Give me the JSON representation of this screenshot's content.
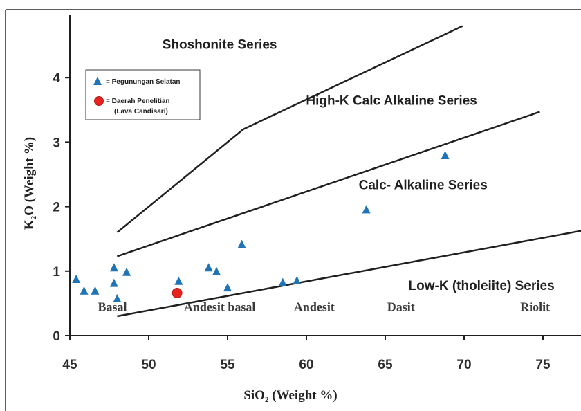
{
  "chart_data": {
    "type": "scatter",
    "title": "",
    "xlabel": "SiO",
    "xlabel_sub": "2",
    "xlabel_suffix": " (Weight %)",
    "ylabel": "K",
    "ylabel_sub": "2",
    "ylabel_suffix": "O (Weight %)",
    "xlim": [
      45,
      78
    ],
    "ylim": [
      0,
      4.9
    ],
    "xticks": [
      45,
      50,
      55,
      60,
      65,
      70,
      75
    ],
    "yticks": [
      0,
      1,
      2,
      3,
      4
    ],
    "grid": false,
    "legend_placement": "top-left",
    "legend": [
      {
        "name": "= Pegunungan Selatan",
        "marker": "triangle",
        "color": "#1f73b7"
      },
      {
        "name": "= Daerah Penelitian",
        "subname": "(Lava Candisari)",
        "marker": "circle",
        "color": "#e8221c"
      }
    ],
    "series": [
      {
        "name": "= Pegunungan Selatan",
        "marker": "triangle",
        "color": "#1f73b7",
        "points": [
          {
            "x": 45.4,
            "y": 0.88
          },
          {
            "x": 45.9,
            "y": 0.7
          },
          {
            "x": 46.6,
            "y": 0.7
          },
          {
            "x": 47.8,
            "y": 1.06
          },
          {
            "x": 47.8,
            "y": 0.82
          },
          {
            "x": 48.0,
            "y": 0.58
          },
          {
            "x": 48.6,
            "y": 0.99
          },
          {
            "x": 51.9,
            "y": 0.85
          },
          {
            "x": 53.8,
            "y": 1.06
          },
          {
            "x": 54.3,
            "y": 1.0
          },
          {
            "x": 55.0,
            "y": 0.75
          },
          {
            "x": 55.9,
            "y": 1.42
          },
          {
            "x": 58.5,
            "y": 0.83
          },
          {
            "x": 59.4,
            "y": 0.86
          },
          {
            "x": 63.8,
            "y": 1.96
          },
          {
            "x": 68.8,
            "y": 2.8
          }
        ]
      },
      {
        "name": "= Daerah Penelitian",
        "marker": "circle",
        "color": "#e8221c",
        "points": [
          {
            "x": 51.8,
            "y": 0.66
          }
        ]
      }
    ],
    "boundaries": [
      {
        "points": [
          [
            48.0,
            0.3
          ],
          [
            78.0,
            1.65
          ]
        ]
      },
      {
        "points": [
          [
            48.0,
            1.23
          ],
          [
            74.8,
            3.47
          ]
        ]
      },
      {
        "points": [
          [
            48.0,
            1.6
          ],
          [
            56.0,
            3.2
          ],
          [
            69.9,
            4.8
          ]
        ]
      }
    ],
    "region_labels": [
      {
        "text": "Shoshonite Series",
        "x": 54.5,
        "y": 4.45
      },
      {
        "text": "High-K Calc Alkaline Series",
        "x": 65.4,
        "y": 3.58
      },
      {
        "text": "Calc- Alkaline Series",
        "x": 67.4,
        "y": 2.27
      },
      {
        "text": "Low-K (tholeiite) Series",
        "x": 71.1,
        "y": 0.71
      }
    ],
    "rock_labels": [
      {
        "text": "Basal",
        "x": 47.7,
        "y": 0.38
      },
      {
        "text": "Andesit basal",
        "x": 54.5,
        "y": 0.38
      },
      {
        "text": "Andesit",
        "x": 60.5,
        "y": 0.38
      },
      {
        "text": "Dasit",
        "x": 66.0,
        "y": 0.38
      },
      {
        "text": "Riolit",
        "x": 74.5,
        "y": 0.38
      }
    ]
  }
}
